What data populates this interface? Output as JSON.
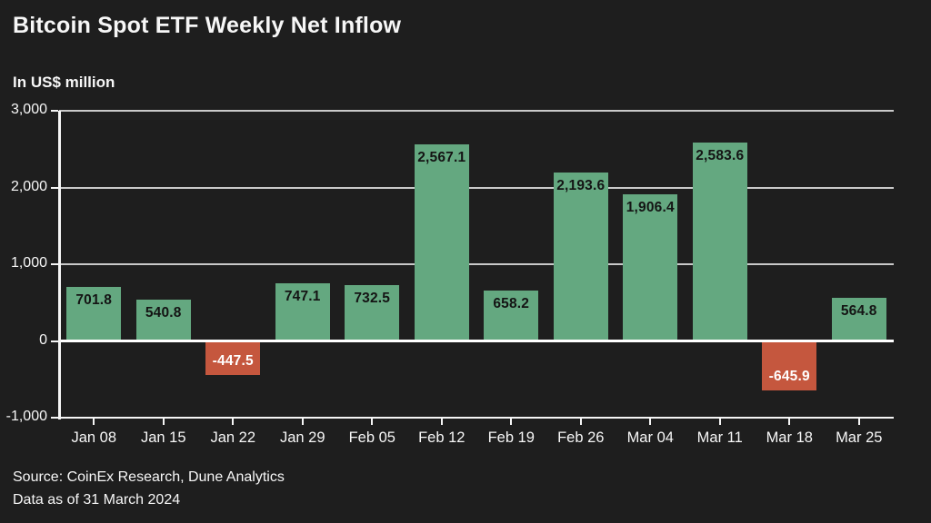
{
  "title": "Bitcoin Spot ETF Weekly Net Inflow",
  "subtitle": "In US$ million",
  "footer": {
    "source": "Source: CoinEx Research, Dune Analytics",
    "as_of": "Data as of 31 March 2024"
  },
  "colors": {
    "background": "#1e1e1e",
    "text": "#f7f7f7",
    "positive_bar": "#64a880",
    "negative_bar": "#c5573e",
    "gridline": "#c9c9c9",
    "axis": "#f5f5f5",
    "zero_line": "#ffffff",
    "label_on_positive": "#141414",
    "label_on_negative": "#ffffff"
  },
  "chart_data": {
    "type": "bar",
    "title": "Bitcoin Spot ETF Weekly Net Inflow",
    "subtitle": "In US$ million",
    "xlabel": "",
    "ylabel": "In US$ million",
    "ylim": [
      -1000,
      3000
    ],
    "grid": true,
    "legend": "none",
    "categories": [
      "Jan 08",
      "Jan 15",
      "Jan 22",
      "Jan 29",
      "Feb 05",
      "Feb 12",
      "Feb 19",
      "Feb 26",
      "Mar 04",
      "Mar 11",
      "Mar 18",
      "Mar 25"
    ],
    "values": [
      701.8,
      540.8,
      -447.5,
      747.1,
      732.5,
      2567.1,
      658.2,
      2193.6,
      1906.4,
      2583.6,
      -645.9,
      564.8
    ],
    "value_labels": [
      "701.8",
      "540.8",
      "-447.5",
      "747.1",
      "732.5",
      "2,567.1",
      "658.2",
      "2,193.6",
      "1,906.4",
      "2,583.6",
      "-645.9",
      "564.8"
    ],
    "yticks": [
      {
        "label": "3,000",
        "value": 3000
      },
      {
        "label": "2,000",
        "value": 2000
      },
      {
        "label": "1,000",
        "value": 1000
      },
      {
        "label": "0",
        "value": 0
      },
      {
        "label": "-1,000",
        "value": -1000
      }
    ]
  }
}
